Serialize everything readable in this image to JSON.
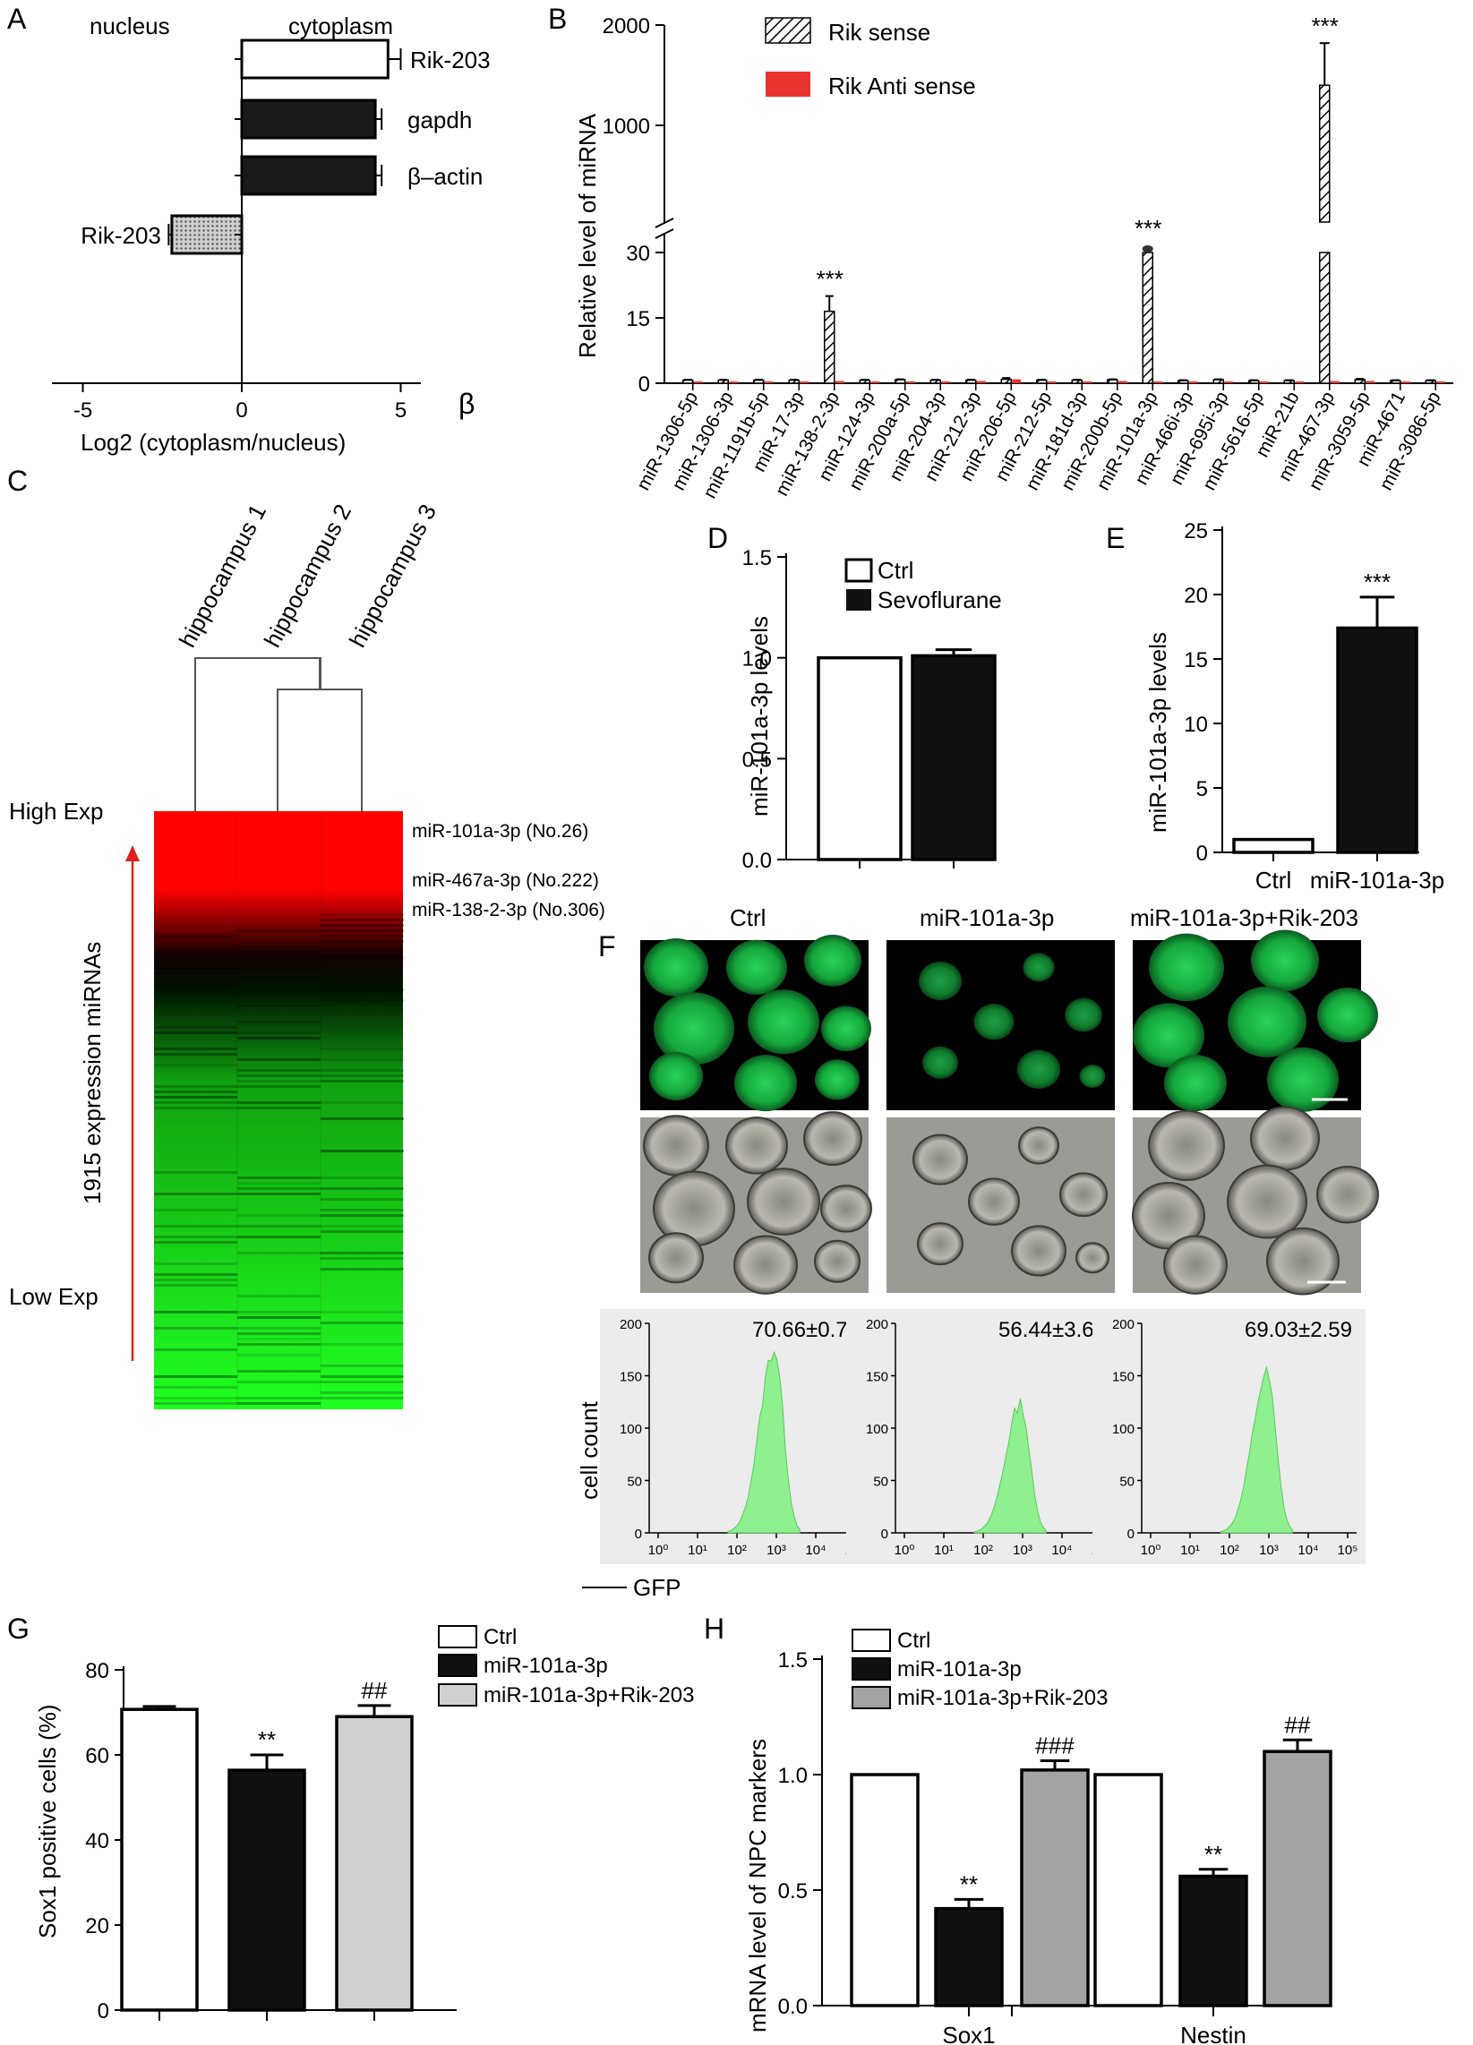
{
  "panels": [
    "A",
    "B",
    "C",
    "D",
    "E",
    "F",
    "G",
    "H"
  ],
  "chart_data": [
    {
      "panel": "A",
      "type": "bar",
      "orientation": "horizontal",
      "region_left": "nucleus",
      "region_right": "cytoplasm",
      "categories": [
        "Rik-203 (cytoplasm)",
        "gapdh",
        "β–actin",
        "Rik-203 (nucleus)"
      ],
      "labels": [
        "Rik-203",
        "gapdh",
        "β–actin",
        "Rik-203"
      ],
      "values": [
        4.6,
        4.2,
        4.2,
        -2.2
      ],
      "errors": [
        0.4,
        0.2,
        0.2,
        0.1
      ],
      "colors": [
        "#ffffff",
        "#1a1a1a",
        "#1a1a1a",
        "#bdbdbd"
      ],
      "xticks": [
        -5,
        0,
        5
      ],
      "xlim": [
        -6,
        6
      ],
      "xlabel": "Log2 (cytoplasm/nucleus)",
      "beta": "β"
    },
    {
      "panel": "B",
      "type": "bar",
      "ylabel": "Relative level  of miRNA",
      "series": [
        {
          "name": "Rik sense",
          "values": [
            0.7,
            0.7,
            0.7,
            0.7,
            16.5,
            0.7,
            0.8,
            0.7,
            0.7,
            0.9,
            0.7,
            0.7,
            0.8,
            31.5,
            0.6,
            0.8,
            0.6,
            0.6,
            1400,
            0.8,
            0.6,
            0.6
          ]
        },
        {
          "name": "Rik Anti sense",
          "values": [
            0.4,
            0.4,
            0.4,
            0.4,
            0.5,
            0.4,
            0.4,
            0.4,
            0.5,
            0.9,
            0.4,
            0.4,
            0.5,
            0.4,
            0.4,
            0.4,
            0.4,
            0.4,
            0.5,
            0.5,
            0.4,
            0.4
          ]
        }
      ],
      "categories": [
        "miR-1306-5p",
        "miR-1306-3p",
        "miR-1191b-5p",
        "miR-17-3p",
        "miR-138-2-3p",
        "miR-124-3p",
        "miR-200a-5p",
        "miR-204-3p",
        "miR-212-3p",
        "miR-206-5p",
        "miR-212-5p",
        "miR-181d-3p",
        "miR-200b-5p",
        "miR-101a-3p",
        "miR-466i-3p",
        "miR-695i-3p",
        "miR-5616-5p",
        "miR-21b",
        "miR-467-3p",
        "miR-3059-5p",
        "miR-4671",
        "miR-3086-5p"
      ],
      "errors": [
        0.1,
        0.1,
        0.1,
        0.1,
        3.5,
        0.1,
        0.1,
        0.1,
        0.1,
        0.3,
        0.1,
        0.1,
        0.1,
        0.5,
        0.1,
        0.1,
        0.1,
        0.1,
        420,
        0.2,
        0.1,
        0.1
      ],
      "significance": {
        "4": "***",
        "13": "***",
        "18": "***"
      },
      "yticks_low": [
        0,
        15,
        30
      ],
      "yticks_high": [
        1000,
        2000
      ],
      "axis_break": true
    },
    {
      "panel": "D",
      "type": "bar",
      "ylabel": "miR-101a-3p levels",
      "categories": [
        "Ctrl",
        "Sevoflurane"
      ],
      "values": [
        1.0,
        1.01
      ],
      "errors": [
        0,
        0.03
      ],
      "yticks": [
        "0.0",
        "0.5",
        "1.0",
        "1.5"
      ],
      "ylim": [
        0,
        1.5
      ],
      "legend": [
        "Ctrl",
        "Sevoflurane"
      ]
    },
    {
      "panel": "E",
      "type": "bar",
      "ylabel": "miR-101a-3p levels",
      "categories": [
        "Ctrl",
        "miR-101a-3p"
      ],
      "values": [
        1.0,
        17.4
      ],
      "errors": [
        0,
        2.4
      ],
      "significance": [
        "",
        "***"
      ],
      "yticks": [
        0,
        5,
        10,
        15,
        20,
        25
      ],
      "ylim": [
        0,
        25
      ]
    },
    {
      "panel": "G",
      "type": "bar",
      "ylabel": "Sox1 positive cells (%)",
      "categories": [
        "Ctrl",
        "miR-101a-3p",
        "miR-101a-3p+Rik-203"
      ],
      "values": [
        70.7,
        56.4,
        69.0
      ],
      "errors": [
        0.7,
        3.6,
        2.6
      ],
      "significance": [
        "",
        "**",
        "##"
      ],
      "colors": [
        "#ffffff",
        "#111111",
        "#d0d0d0"
      ],
      "yticks": [
        0,
        20,
        40,
        60,
        80
      ],
      "ylim": [
        0,
        80
      ]
    },
    {
      "panel": "H",
      "type": "bar",
      "ylabel": "mRNA level of NPC markers",
      "categories": [
        "Sox1",
        "Nestin"
      ],
      "series": [
        {
          "name": "Ctrl",
          "values": [
            1.0,
            1.0
          ],
          "errors": [
            0,
            0
          ]
        },
        {
          "name": "miR-101a-3p",
          "values": [
            0.42,
            0.56
          ],
          "errors": [
            0.04,
            0.03
          ]
        },
        {
          "name": "miR-101a-3p+Rik-203",
          "values": [
            1.02,
            1.1
          ],
          "errors": [
            0.04,
            0.05
          ]
        }
      ],
      "significance": [
        [
          "",
          "**",
          "###"
        ],
        [
          "",
          "**",
          "##"
        ]
      ],
      "yticks": [
        "0.0",
        "0.5",
        "1.0",
        "1.5"
      ],
      "ylim": [
        0,
        1.5
      ]
    }
  ],
  "heatmap": {
    "panel": "C",
    "samples": [
      "hippocampus 1",
      "hippocampus 2",
      "hippocampus 3"
    ],
    "high": "High Exp",
    "low": "Low Exp",
    "axis_label": "1915 expression miRNAs",
    "annotations": [
      "miR-101a-3p (No.26)",
      "miR-467a-3p (No.222)",
      "miR-138-2-3p (No.306)"
    ]
  },
  "figF": {
    "groups": [
      "Ctrl",
      "miR-101a-3p",
      "miR-101a-3p+Rik-203"
    ],
    "percentages": [
      "70.66±0.74",
      "56.44±3.65",
      "69.03±2.59"
    ],
    "hist_ylabel": "cell count",
    "hist_xlabel": "GFP",
    "hist_yticks": [
      0,
      50,
      100,
      150,
      200
    ],
    "hist_xticks": [
      "10⁰",
      "10¹",
      "10²",
      "10³",
      "10⁴",
      "10⁵"
    ]
  }
}
